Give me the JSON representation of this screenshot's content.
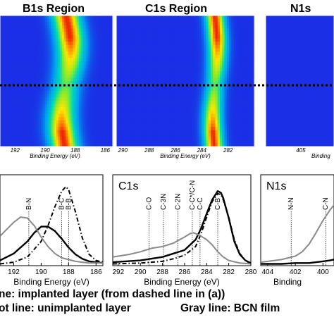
{
  "colors": {
    "map_background": "#1a2fe6",
    "implanted": "#000000",
    "unimplanted": "#000000",
    "bcn_film": "#8a8a8a"
  },
  "maps": [
    {
      "title": "B1s Region",
      "xlabel": "Binding Energy (eV)",
      "xlim": [
        193,
        185.5
      ],
      "ticks": [
        192,
        190,
        188,
        186
      ],
      "peak_center": 188.6,
      "peak_width": 0.9,
      "shift": 0.5
    },
    {
      "title": "C1s Region",
      "xlabel": "Binding Energy (eV)",
      "xlim": [
        290.5,
        280
      ],
      "ticks": [
        290,
        288,
        286,
        284,
        282
      ],
      "peak_center": 283.0,
      "peak_width": 0.7,
      "shift": 0.3
    },
    {
      "title": "N1s",
      "xlabel": "Binding",
      "xlim": [
        406.8,
        403.3
      ],
      "ticks": [
        405
      ],
      "peak_center": 0,
      "peak_width": 0.8,
      "shift": 0
    }
  ],
  "chart_data": [
    {
      "type": "line",
      "title": "",
      "xlabel": "Binding Energy (eV)",
      "xlim": [
        193,
        185.5
      ],
      "ticks": [
        192,
        190,
        188,
        186
      ],
      "ylabel": "",
      "annotations": [
        {
          "label": "B-N",
          "x": 190.9
        },
        {
          "label": "B-C",
          "x": 188.5
        },
        {
          "label": "B-B",
          "x": 188.0
        }
      ],
      "series": [
        {
          "name": "implanted layer",
          "style": "solid",
          "x": [
            193,
            192,
            191,
            190.5,
            190,
            189.5,
            189,
            188.5,
            188,
            187.5,
            187,
            186.5,
            186,
            185.5
          ],
          "values": [
            0.06,
            0.14,
            0.28,
            0.38,
            0.45,
            0.45,
            0.4,
            0.31,
            0.21,
            0.13,
            0.08,
            0.05,
            0.04,
            0.03
          ]
        },
        {
          "name": "unimplanted layer",
          "style": "dash-dot",
          "x": [
            193,
            192,
            191,
            190,
            189.5,
            189,
            188.5,
            188.2,
            188,
            187.5,
            187,
            186.5,
            186,
            185.5
          ],
          "values": [
            0.02,
            0.04,
            0.1,
            0.28,
            0.46,
            0.68,
            0.86,
            0.91,
            0.88,
            0.62,
            0.32,
            0.13,
            0.06,
            0.04
          ]
        },
        {
          "name": "BCN film",
          "style": "gray",
          "x": [
            193,
            192.5,
            192,
            191.5,
            191,
            190.5,
            190,
            189.5,
            189,
            188.5,
            188,
            187.5,
            187,
            186.5,
            186,
            185.5
          ],
          "values": [
            0.34,
            0.42,
            0.5,
            0.56,
            0.55,
            0.46,
            0.33,
            0.22,
            0.14,
            0.09,
            0.07,
            0.05,
            0.04,
            0.03,
            0.03,
            0.03
          ]
        }
      ]
    },
    {
      "type": "line",
      "title": "C1s",
      "xlabel": "Binding Energy (eV)",
      "xlim": [
        292.5,
        280
      ],
      "ticks": [
        292,
        290,
        288,
        286,
        284,
        282,
        280
      ],
      "ylabel": "",
      "annotations": [
        {
          "label": "C-O",
          "x": 289.2
        },
        {
          "label": "C-3N",
          "x": 287.9
        },
        {
          "label": "C-2N",
          "x": 286.6
        },
        {
          "label": "C-C*/C-N",
          "x": 285.3
        },
        {
          "label": "C-C",
          "x": 284.6
        },
        {
          "label": "C-B",
          "x": 283.0
        }
      ],
      "series": [
        {
          "name": "implanted layer",
          "style": "solid",
          "x": [
            292.5,
            290,
            288,
            287,
            286,
            285,
            284.5,
            284,
            283.5,
            283,
            282.7,
            282.5,
            282,
            281.5,
            281,
            280.5,
            280
          ],
          "values": [
            0.04,
            0.06,
            0.1,
            0.14,
            0.18,
            0.3,
            0.43,
            0.6,
            0.76,
            0.86,
            0.84,
            0.78,
            0.55,
            0.28,
            0.13,
            0.06,
            0.03
          ]
        },
        {
          "name": "unimplanted layer",
          "style": "dash-dot",
          "x": [
            292.5,
            290,
            288,
            287,
            286,
            285,
            284.5,
            284,
            283.5,
            283,
            282.7,
            282.5,
            282,
            281.5,
            281,
            280.5,
            280
          ],
          "values": [
            0.02,
            0.03,
            0.05,
            0.08,
            0.12,
            0.22,
            0.37,
            0.56,
            0.74,
            0.83,
            0.82,
            0.76,
            0.56,
            0.3,
            0.14,
            0.06,
            0.02
          ]
        },
        {
          "name": "BCN film",
          "style": "gray",
          "x": [
            292.5,
            291,
            290,
            289,
            288,
            287,
            286,
            285.5,
            285.2,
            285,
            284.5,
            284,
            283.5,
            283,
            282.5,
            282,
            281,
            280
          ],
          "values": [
            0.1,
            0.13,
            0.16,
            0.2,
            0.22,
            0.26,
            0.33,
            0.37,
            0.38,
            0.37,
            0.34,
            0.3,
            0.24,
            0.16,
            0.1,
            0.06,
            0.03,
            0.02
          ]
        }
      ]
    },
    {
      "type": "line",
      "title": "N1s",
      "xlabel": "Binding",
      "xlim": [
        404.5,
        399.2
      ],
      "ticks": [
        404,
        402,
        400
      ],
      "ylabel": "",
      "annotations": [
        {
          "label": "N-N",
          "x": 402.3
        },
        {
          "label": "C-N",
          "x": 399.8
        }
      ],
      "series": [
        {
          "name": "implanted layer",
          "style": "solid",
          "x": [
            404.5,
            403,
            402,
            401,
            400.5,
            400,
            399.5,
            399.2
          ],
          "values": [
            0.02,
            0.02,
            0.03,
            0.03,
            0.04,
            0.05,
            0.06,
            0.07
          ]
        },
        {
          "name": "BCN film",
          "style": "gray",
          "x": [
            404.5,
            404,
            403,
            402,
            401.5,
            401,
            400.5,
            400,
            399.5,
            399.2
          ],
          "values": [
            0.04,
            0.05,
            0.07,
            0.11,
            0.16,
            0.25,
            0.38,
            0.52,
            0.64,
            0.7
          ]
        }
      ]
    }
  ],
  "legend": {
    "line1": "ne: implanted layer (from dashed line in (a))",
    "line2": "ot line: unimplanted layer",
    "line3": "Gray line: BCN film"
  }
}
